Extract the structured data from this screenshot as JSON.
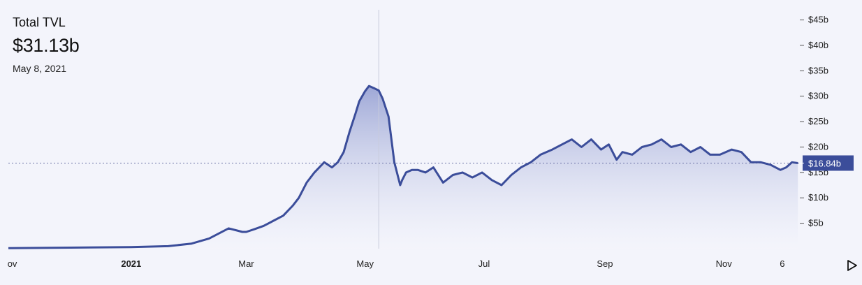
{
  "header": {
    "title": "Total TVL",
    "value": "$31.13b",
    "date": "May 8, 2021"
  },
  "colors": {
    "line": "#3b4d9a",
    "area_top": "#8f9ad0",
    "area_bottom": "#f5f6fc",
    "background": "#f3f4fb",
    "badge": "#3b4d9a"
  },
  "icons": {
    "play": "play-triangle-icon"
  },
  "chart_data": {
    "type": "area",
    "title": "Total TVL",
    "y_unit": "USD billions",
    "ylim": [
      0,
      47
    ],
    "y_ticks": [
      {
        "value": 5,
        "label": "$5b"
      },
      {
        "value": 10,
        "label": "$10b"
      },
      {
        "value": 15,
        "label": "$15b"
      },
      {
        "value": 20,
        "label": "$20b"
      },
      {
        "value": 25,
        "label": "$25b"
      },
      {
        "value": 30,
        "label": "$30b"
      },
      {
        "value": 35,
        "label": "$35b"
      },
      {
        "value": 40,
        "label": "$40b"
      },
      {
        "value": 45,
        "label": "$45b"
      }
    ],
    "xlim": [
      "2020-10-30",
      "2021-12-10"
    ],
    "x_ticks": [
      {
        "date": "2020-11-01",
        "label": "ov",
        "bold": false
      },
      {
        "date": "2021-01-01",
        "label": "2021",
        "bold": true
      },
      {
        "date": "2021-03-01",
        "label": "Mar",
        "bold": false
      },
      {
        "date": "2021-05-01",
        "label": "May",
        "bold": false
      },
      {
        "date": "2021-07-01",
        "label": "Jul",
        "bold": false
      },
      {
        "date": "2021-09-01",
        "label": "Sep",
        "bold": false
      },
      {
        "date": "2021-11-01",
        "label": "Nov",
        "bold": false
      },
      {
        "date": "2021-12-01",
        "label": "6",
        "bold": false
      }
    ],
    "crosshair": {
      "date": "2021-05-08",
      "value": 31.13
    },
    "current": {
      "value": 16.84,
      "label": "$16.84b"
    },
    "grid": false,
    "legend": "none",
    "series": [
      {
        "x": [
          "2020-10-30",
          "2020-12-01",
          "2021-01-01",
          "2021-01-20",
          "2021-02-01",
          "2021-02-10",
          "2021-02-20",
          "2021-02-25",
          "2021-02-27",
          "2021-03-01",
          "2021-03-05",
          "2021-03-10",
          "2021-03-15",
          "2021-03-20",
          "2021-03-25",
          "2021-03-28",
          "2021-04-01",
          "2021-04-05",
          "2021-04-10",
          "2021-04-14",
          "2021-04-17",
          "2021-04-20",
          "2021-04-23",
          "2021-04-26",
          "2021-04-28",
          "2021-05-01",
          "2021-05-03",
          "2021-05-06",
          "2021-05-08",
          "2021-05-10",
          "2021-05-13",
          "2021-05-16",
          "2021-05-19",
          "2021-05-20",
          "2021-05-22",
          "2021-05-25",
          "2021-05-28",
          "2021-06-01",
          "2021-06-05",
          "2021-06-10",
          "2021-06-15",
          "2021-06-20",
          "2021-06-25",
          "2021-06-30",
          "2021-07-05",
          "2021-07-10",
          "2021-07-15",
          "2021-07-20",
          "2021-07-25",
          "2021-07-30",
          "2021-08-05",
          "2021-08-10",
          "2021-08-15",
          "2021-08-20",
          "2021-08-25",
          "2021-08-30",
          "2021-09-03",
          "2021-09-07",
          "2021-09-10",
          "2021-09-15",
          "2021-09-20",
          "2021-09-25",
          "2021-09-30",
          "2021-10-05",
          "2021-10-10",
          "2021-10-15",
          "2021-10-20",
          "2021-10-25",
          "2021-10-30",
          "2021-11-05",
          "2021-11-10",
          "2021-11-15",
          "2021-11-20",
          "2021-11-25",
          "2021-11-30",
          "2021-12-03",
          "2021-12-06",
          "2021-12-09"
        ],
        "values": [
          0.1,
          0.2,
          0.3,
          0.5,
          1.0,
          2.0,
          4.0,
          3.5,
          3.3,
          3.3,
          3.8,
          4.5,
          5.5,
          6.5,
          8.5,
          10.0,
          13.0,
          15.0,
          17.0,
          16.0,
          17.0,
          19.0,
          23.0,
          26.5,
          29.0,
          31.0,
          32.0,
          31.5,
          31.13,
          29.5,
          26.0,
          17.0,
          12.5,
          13.5,
          15.0,
          15.5,
          15.5,
          15.0,
          16.0,
          13.0,
          14.5,
          15.0,
          14.0,
          15.0,
          13.5,
          12.5,
          14.5,
          16.0,
          17.0,
          18.5,
          19.5,
          20.5,
          21.5,
          20.0,
          21.5,
          19.5,
          20.5,
          17.5,
          19.0,
          18.5,
          20.0,
          20.5,
          21.5,
          20.0,
          20.5,
          19.0,
          20.0,
          18.5,
          18.5,
          19.5,
          19.0,
          17.0,
          17.0,
          16.5,
          15.5,
          16.0,
          17.0,
          16.84
        ]
      }
    ]
  }
}
